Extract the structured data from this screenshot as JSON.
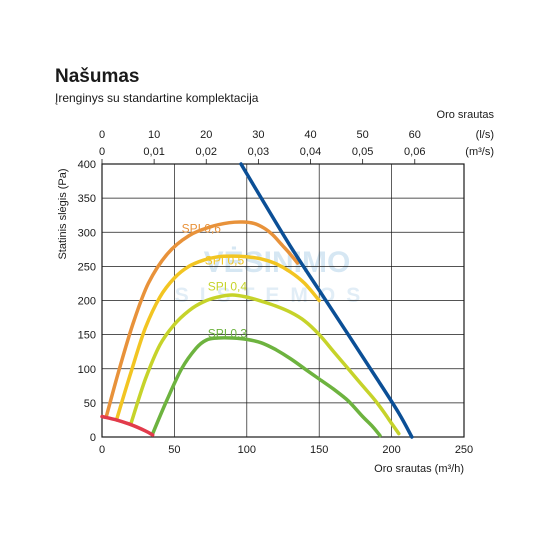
{
  "colors": {
    "spi_0_6": "#e8923a",
    "spi_0_5": "#f2c522",
    "spi_0_4": "#c6d32a",
    "spi_0_3": "#6db33f",
    "fan_curve": "#0b4f96",
    "min_line": "#e23b4b",
    "grid": "#1a1a1a",
    "watermark": "#c9dff0"
  },
  "watermark": {
    "line1": "VĖSINIMO",
    "line2": "SISTEMOS"
  },
  "chart_data": {
    "type": "line",
    "title": "Našumas",
    "subtitle": "Įrenginys su standartine komplektacija",
    "xlabel": "Oro srautas (m³/h)",
    "ylabel": "Statinis slėgis (Pa)",
    "xlim": [
      0,
      250
    ],
    "ylim": [
      0,
      400
    ],
    "x_ticks": [
      0,
      50,
      100,
      150,
      200,
      250
    ],
    "y_ticks": [
      0,
      50,
      100,
      150,
      200,
      250,
      300,
      350,
      400
    ],
    "grid": true,
    "top_axis": {
      "title": "Oro srautas",
      "unit_ls": "(l/s)",
      "unit_m3s": "(m³/s)",
      "ls_ticks": [
        "0",
        "10",
        "20",
        "30",
        "40",
        "50",
        "60"
      ],
      "m3s_ticks": [
        "0",
        "0,01",
        "0,02",
        "0,03",
        "0,04",
        "0,05",
        "0,06"
      ],
      "ls_values": [
        0,
        10,
        20,
        30,
        40,
        50,
        60
      ]
    },
    "series": [
      {
        "name": "SPI 0,6",
        "color_key": "spi_0_6",
        "x": [
          3,
          12,
          22,
          32,
          45,
          60,
          75,
          88,
          97,
          105,
          112,
          118,
          124,
          130,
          135
        ],
        "y": [
          30,
          100,
          170,
          225,
          268,
          295,
          308,
          314,
          315,
          313,
          306,
          296,
          282,
          268,
          255
        ]
      },
      {
        "name": "SPI 0,5",
        "color_key": "spi_0_5",
        "x": [
          10,
          20,
          30,
          40,
          50,
          60,
          70,
          80,
          90,
          100,
          110,
          120,
          130,
          140,
          150
        ],
        "y": [
          25,
          95,
          160,
          205,
          233,
          250,
          259,
          264,
          265,
          264,
          261,
          254,
          242,
          225,
          200
        ]
      },
      {
        "name": "SPI 0,4",
        "color_key": "spi_0_4",
        "x": [
          20,
          30,
          40,
          50,
          60,
          70,
          80,
          90,
          100,
          110,
          120,
          130,
          140,
          150,
          160,
          170,
          180,
          190,
          200,
          205
        ],
        "y": [
          20,
          85,
          135,
          165,
          185,
          198,
          205,
          208,
          205,
          199,
          192,
          183,
          170,
          150,
          125,
          100,
          75,
          50,
          20,
          5
        ]
      },
      {
        "name": "SPI 0,3",
        "color_key": "spi_0_3",
        "x": [
          35,
          45,
          55,
          65,
          72,
          80,
          90,
          100,
          110,
          120,
          130,
          140,
          150,
          160,
          170,
          180,
          187,
          192
        ],
        "y": [
          5,
          55,
          100,
          130,
          142,
          145,
          145,
          143,
          138,
          128,
          115,
          100,
          85,
          70,
          53,
          30,
          15,
          2
        ]
      },
      {
        "name": "",
        "color_key": "fan_curve",
        "x": [
          96,
          110,
          130,
          150,
          170,
          190,
          205,
          214
        ],
        "y": [
          400,
          350,
          280,
          215,
          150,
          85,
          35,
          0
        ]
      },
      {
        "name": "",
        "color_key": "min_line",
        "x": [
          0,
          10,
          20,
          30,
          35
        ],
        "y": [
          30,
          25,
          18,
          9,
          3
        ]
      }
    ],
    "annotations": [
      {
        "text": "SPI 0,6",
        "x": 55,
        "y": 300,
        "color_key": "spi_0_6"
      },
      {
        "text": "SPI 0,5",
        "x": 71,
        "y": 253,
        "color_key": "spi_0_5"
      },
      {
        "text": "SPI 0,4",
        "x": 73,
        "y": 215,
        "color_key": "spi_0_4"
      },
      {
        "text": "SPI 0,3",
        "x": 73,
        "y": 146,
        "color_key": "spi_0_3"
      }
    ]
  }
}
